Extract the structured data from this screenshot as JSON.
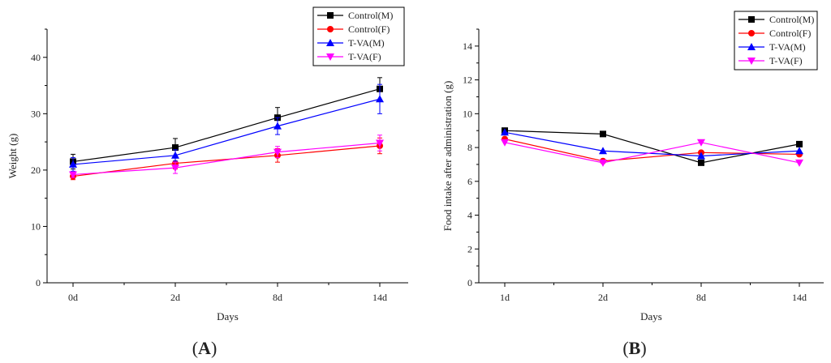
{
  "chart_data": [
    {
      "panel": "A",
      "type": "line",
      "title": "",
      "xlabel": "Days",
      "ylabel": "Weight (g)",
      "categories": [
        "0d",
        "2d",
        "8d",
        "14d"
      ],
      "ylim": [
        0,
        45
      ],
      "yticks": [
        0,
        10,
        20,
        30,
        40
      ],
      "legend_position": "top-right",
      "series": [
        {
          "name": "Control(M)",
          "color": "#000000",
          "marker": "square",
          "values": [
            21.5,
            24.0,
            29.3,
            34.4
          ],
          "errors": [
            1.3,
            1.6,
            1.8,
            2.0
          ]
        },
        {
          "name": "Control(F)",
          "color": "#ff0000",
          "marker": "circle",
          "values": [
            18.9,
            21.2,
            22.6,
            24.3
          ],
          "errors": [
            0.6,
            1.0,
            1.2,
            1.4
          ]
        },
        {
          "name": "T-VA(M)",
          "color": "#0000ff",
          "marker": "triangle-up",
          "values": [
            21.0,
            22.6,
            27.8,
            32.6
          ],
          "errors": [
            1.2,
            1.0,
            1.5,
            2.6
          ]
        },
        {
          "name": "T-VA(F)",
          "color": "#ff00ff",
          "marker": "triangle-down",
          "values": [
            19.2,
            20.4,
            23.2,
            24.8
          ],
          "errors": [
            0.5,
            1.0,
            1.0,
            1.4
          ]
        }
      ]
    },
    {
      "panel": "B",
      "type": "line",
      "title": "",
      "xlabel": "Days",
      "ylabel": "Food intake after administration (g)",
      "categories": [
        "1d",
        "2d",
        "8d",
        "14d"
      ],
      "ylim": [
        0,
        15
      ],
      "yticks": [
        0,
        2,
        4,
        6,
        8,
        10,
        12,
        14
      ],
      "legend_position": "top-right",
      "series": [
        {
          "name": "Control(M)",
          "color": "#000000",
          "marker": "square",
          "values": [
            9.0,
            8.8,
            7.1,
            8.2
          ]
        },
        {
          "name": "Control(F)",
          "color": "#ff0000",
          "marker": "circle",
          "values": [
            8.5,
            7.2,
            7.7,
            7.6
          ]
        },
        {
          "name": "T-VA(M)",
          "color": "#0000ff",
          "marker": "triangle-up",
          "values": [
            8.9,
            7.8,
            7.5,
            7.8
          ]
        },
        {
          "name": "T-VA(F)",
          "color": "#ff00ff",
          "marker": "triangle-down",
          "values": [
            8.3,
            7.1,
            8.3,
            7.1
          ]
        }
      ]
    }
  ],
  "captions": {
    "A": {
      "open": "(",
      "letter": "A",
      "close": ")"
    },
    "B": {
      "open": "(",
      "letter": "B",
      "close": ")"
    }
  }
}
